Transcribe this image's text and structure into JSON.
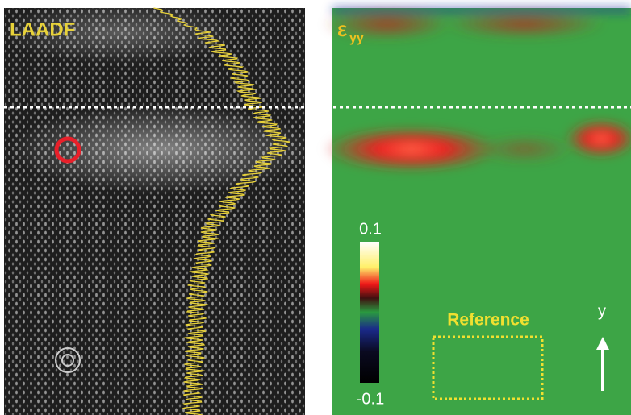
{
  "left_panel": {
    "label": "LAADF"
  },
  "right_panel": {
    "label": {
      "symbol": "ε",
      "subscript": "yy"
    },
    "colorbar": {
      "max_label": "0.1",
      "min_label": "-0.1"
    },
    "reference_label": "Reference",
    "axis_label": "y"
  }
}
